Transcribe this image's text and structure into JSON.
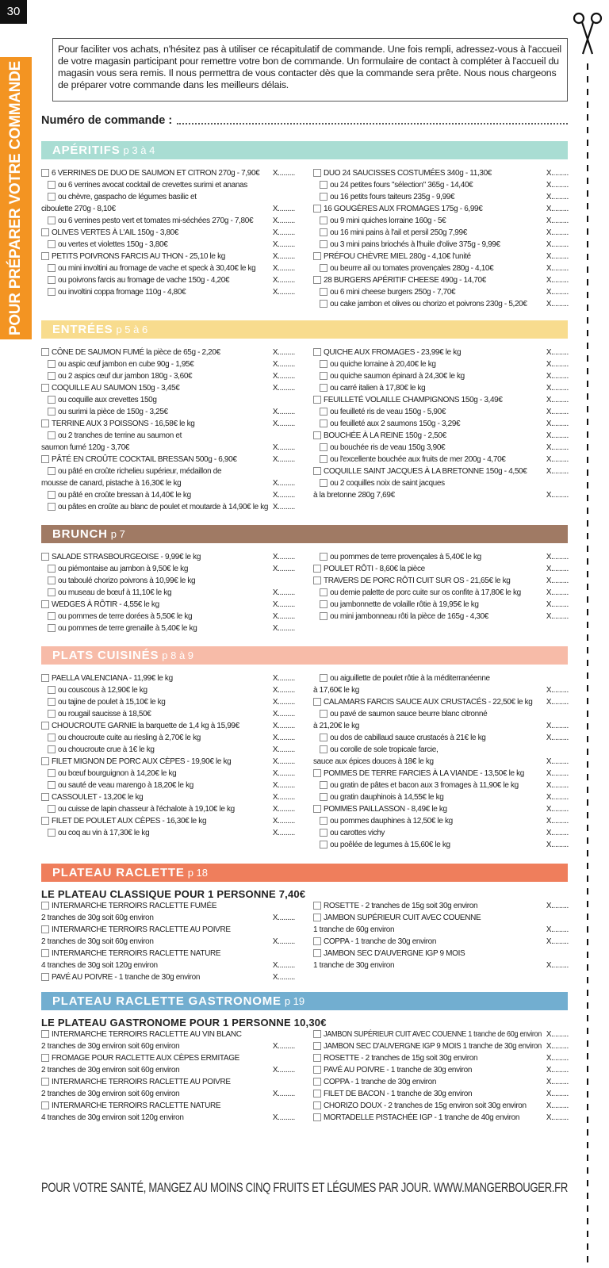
{
  "page_number": "30",
  "side_label": "POUR PRÉPARER VOTRE COMMANDE",
  "intro": "Pour faciliter vos achats, n'hésitez pas à utiliser ce récapitulatif de commande. Une fois rempli, adressez-vous à l'accueil de votre magasin participant pour remettre votre bon de commande. Un formulaire de contact à compléter à l'accueil du magasin vous sera remis. Il nous permettra de vous contacter dès que la commande sera prête. Nous nous chargeons de préparer votre commande dans les meilleurs délais.",
  "order_number_label": "Numéro de commande :",
  "order_mark": "X.........",
  "sections": [
    {
      "title": "APÉRITIFS",
      "pages": "p 3 à 4",
      "color": "#a9ddd3",
      "columns": [
        [
          {
            "kind": "item",
            "text": "6 VERRINES DE DUO DE SAUMON ET CITRON 270g - 7,90€",
            "x": true
          },
          {
            "kind": "option",
            "text": "ou 6 verrines avocat cocktail de crevettes surimi et ananas",
            "x": false
          },
          {
            "kind": "option",
            "text": "ou chèvre, gaspacho de légumes basilic et",
            "x": false
          },
          {
            "kind": "text",
            "text": "ciboulette 270g - 8,10€",
            "x": true
          },
          {
            "kind": "option",
            "text": "ou 6 verrines pesto vert et tomates mi-séchées 270g - 7,80€",
            "x": true
          },
          {
            "kind": "item",
            "text": "OLIVES VERTES À L'AIL 150g - 3,80€",
            "x": true
          },
          {
            "kind": "option",
            "text": "ou vertes et violettes 150g - 3,80€",
            "x": true
          },
          {
            "kind": "item",
            "text": "PETITS POIVRONS FARCIS AU THON - 25,10 le kg",
            "x": true
          },
          {
            "kind": "option",
            "text": "ou mini involtini au fromage de vache et speck à 30,40€ le kg",
            "x": true
          },
          {
            "kind": "option",
            "text": "ou poivrons farcis au fromage de vache 150g - 4,20€",
            "x": true
          },
          {
            "kind": "option",
            "text": "ou involtini coppa fromage 110g - 4,80€",
            "x": true
          }
        ],
        [
          {
            "kind": "item",
            "text": "DUO 24 SAUCISSES COSTUMÉES 340g - 11,30€",
            "x": true
          },
          {
            "kind": "option",
            "text": "ou 24 petites fours \"sélection\" 365g - 14,40€",
            "x": true
          },
          {
            "kind": "option",
            "text": "ou 16 petits fours taiteurs 235g - 9,99€",
            "x": true
          },
          {
            "kind": "item",
            "text": "16 GOUGÈRES AUX FROMAGES 175g - 6,99€",
            "x": true
          },
          {
            "kind": "option",
            "text": "ou 9 mini quiches lorraine 160g - 5€",
            "x": true
          },
          {
            "kind": "option",
            "text": "ou 16 mini pains à l'ail et persil 250g 7,99€",
            "x": true
          },
          {
            "kind": "option",
            "text": "ou 3 mini pains briochés à l'huile d'olive 375g - 9,99€",
            "x": true
          },
          {
            "kind": "item",
            "text": "PRÉFOU CHÈVRE MIEL 280g - 4,10€ l'unité",
            "x": true
          },
          {
            "kind": "option",
            "text": "ou beurre ail ou tomates provençales 280g - 4,10€",
            "x": true
          },
          {
            "kind": "item",
            "text": "28 BURGERS APÉRITIF CHEESE 490g - 14,70€",
            "x": true
          },
          {
            "kind": "option",
            "text": "ou 6 mini cheese burgers 250g - 7,70€",
            "x": true
          },
          {
            "kind": "option",
            "text": "ou cake jambon et olives ou chorizo et poivrons 230g - 5,20€",
            "x": true
          }
        ]
      ]
    },
    {
      "title": "ENTRÉES",
      "pages": "p 5 à 6",
      "color": "#f8dc8e",
      "columns": [
        [
          {
            "kind": "item",
            "text": "CÔNE DE SAUMON FUMÉ  la pièce de 65g - 2,20€",
            "x": true
          },
          {
            "kind": "option",
            "text": "ou aspic œuf jambon en cube 90g - 1,95€",
            "x": true
          },
          {
            "kind": "option",
            "text": "ou 2 aspics œuf dur jambon 180g - 3,60€",
            "x": true
          },
          {
            "kind": "item",
            "text": "COQUILLE AU SAUMON 150g - 3,45€",
            "x": true
          },
          {
            "kind": "option",
            "text": "ou coquille aux crevettes 150g",
            "x": false
          },
          {
            "kind": "option",
            "text": "ou surimi la pièce de 150g - 3,25€",
            "x": true
          },
          {
            "kind": "item",
            "text": "TERRINE AUX 3 POISSONS - 16,58€ le kg",
            "x": true
          },
          {
            "kind": "option",
            "text": "ou 2 tranches de terrine au saumon et",
            "x": false
          },
          {
            "kind": "text",
            "text": "saumon fumé 120g - 3,70€",
            "x": true
          },
          {
            "kind": "item",
            "text": "PÂTÉ EN CROÛTE COCKTAIL BRESSAN 500g - 6,90€",
            "x": true
          },
          {
            "kind": "option",
            "text": "ou pâté en croûte richelieu supérieur, médaillon de",
            "x": false
          },
          {
            "kind": "text",
            "text": "mousse de canard, pistache à 16,30€ le kg",
            "x": true
          },
          {
            "kind": "option",
            "text": "ou pâté en croûte bressan à 14,40€ le kg",
            "x": true
          },
          {
            "kind": "option",
            "text": "ou pâtes en croûte au blanc de poulet et moutarde à 14,90€ le kg",
            "x": true
          }
        ],
        [
          {
            "kind": "item",
            "text": "QUICHE AUX FROMAGES - 23,99€ le kg",
            "x": true
          },
          {
            "kind": "option",
            "text": "ou quiche lorraine à 20,40€ le kg",
            "x": true
          },
          {
            "kind": "option",
            "text": "ou quiche saumon épinard à 24,30€ le kg",
            "x": true
          },
          {
            "kind": "option",
            "text": "ou carré italien à 17,80€ le kg",
            "x": true
          },
          {
            "kind": "item",
            "text": "FEUILLETÉ VOLAILLE CHAMPIGNONS 150g - 3,49€",
            "x": true
          },
          {
            "kind": "option",
            "text": "ou feuilleté ris de veau 150g - 5,90€",
            "x": true
          },
          {
            "kind": "option",
            "text": "ou feuilleté aux 2 saumons 150g - 3,29€",
            "x": true
          },
          {
            "kind": "item",
            "text": "BOUCHÉE À LA REINE 150g - 2,50€",
            "x": true
          },
          {
            "kind": "option",
            "text": "ou bouchée ris de veau 150g 3,90€",
            "x": true
          },
          {
            "kind": "option",
            "text": "ou l'excellente bouchée aux fruits de mer 200g  - 4,70€",
            "x": true
          },
          {
            "kind": "item",
            "text": "COQUILLE SAINT JACQUES À LA BRETONNE 150g - 4,50€",
            "x": true
          },
          {
            "kind": "option",
            "text": "ou 2 coquilles noix de saint jacques",
            "x": false
          },
          {
            "kind": "text",
            "text": "à la bretonne 280g 7,69€",
            "x": true
          }
        ]
      ]
    },
    {
      "title": "BRUNCH",
      "pages": "p 7",
      "color": "#a07a64",
      "columns": [
        [
          {
            "kind": "item",
            "text": "SALADE STRASBOURGEOISE - 9,99€ le kg",
            "x": true
          },
          {
            "kind": "option",
            "text": "ou piémontaise au jambon à 9,50€ le kg",
            "x": true
          },
          {
            "kind": "option",
            "text": "ou taboulé chorizo poivrons à 10,99€ le kg",
            "x": false
          },
          {
            "kind": "option",
            "text": "ou museau de bœuf à 11,10€ le kg",
            "x": true
          },
          {
            "kind": "item",
            "text": "WEDGES À RÔTIR - 4,55€ le kg",
            "x": true
          },
          {
            "kind": "option",
            "text": "ou pommes de terre dorées à 5,50€ le kg",
            "x": true
          },
          {
            "kind": "option",
            "text": "ou pommes de terre grenaille à 5,40€ le kg",
            "x": true
          }
        ],
        [
          {
            "kind": "option",
            "text": "ou pommes de terre provençales à 5,40€ le kg",
            "x": true
          },
          {
            "kind": "item",
            "text": "POULET RÔTI - 8,60€ la pièce",
            "x": true
          },
          {
            "kind": "item",
            "text": "TRAVERS DE PORC RÔTI CUIT SUR OS - 21,65€ le kg",
            "x": true
          },
          {
            "kind": "option",
            "text": "ou demie palette de porc cuite sur os confite à 17,80€ le kg",
            "x": true
          },
          {
            "kind": "option",
            "text": "ou jambonnette de volaille rôtie à 19,95€ le kg",
            "x": true
          },
          {
            "kind": "option",
            "text": "ou mini jambonneau rôti la pièce de 165g - 4,30€",
            "x": true
          }
        ]
      ]
    },
    {
      "title": "PLATS CUISINÉS",
      "pages": "p 8 à 9",
      "color": "#f7bba8",
      "columns": [
        [
          {
            "kind": "item",
            "text": "PAELLA VALENCIANA - 11,99€ le kg",
            "x": true
          },
          {
            "kind": "option",
            "text": "ou couscous à 12,90€ le kg",
            "x": true
          },
          {
            "kind": "option",
            "text": "ou tajine de poulet à 15,10€ le kg",
            "x": true
          },
          {
            "kind": "option",
            "text": "ou rougail saucisse à 18,50€",
            "x": true
          },
          {
            "kind": "item",
            "text": "CHOUCROUTE GARNIE la barquette de 1,4 kg à 15,99€",
            "x": true
          },
          {
            "kind": "option",
            "text": "ou choucroute cuite au riesling à 2,70€ le kg",
            "x": true
          },
          {
            "kind": "option",
            "text": "ou choucroute crue à 1€ le kg",
            "x": true
          },
          {
            "kind": "item",
            "text": "FILET MIGNON DE PORC AUX CÈPES - 19,90€ le kg",
            "x": true
          },
          {
            "kind": "option",
            "text": "ou bœuf bourguignon à 14,20€ le kg",
            "x": true
          },
          {
            "kind": "option",
            "text": "ou sauté de veau marengo à 18,20€ le kg",
            "x": true
          },
          {
            "kind": "item",
            "text": "CASSOULET - 13,20€ le kg",
            "x": true
          },
          {
            "kind": "option",
            "text": "ou cuisse de lapin chasseur à l'échalote à 19,10€ le kg",
            "x": true
          },
          {
            "kind": "item",
            "text": "FILET DE POULET AUX CÈPES - 16,30€ le kg",
            "x": true
          },
          {
            "kind": "option",
            "text": "ou coq au vin à 17,30€ le kg",
            "x": true
          }
        ],
        [
          {
            "kind": "option",
            "text": "ou aiguillette de poulet rôtie à la méditerranéenne",
            "x": false
          },
          {
            "kind": "text",
            "text": "à 17,60€ le kg",
            "x": true
          },
          {
            "kind": "item",
            "text": "CALAMARS FARCIS SAUCE AUX CRUSTACÉS - 22,50€ le kg",
            "x": true
          },
          {
            "kind": "option",
            "text": "ou pavé de saumon sauce beurre blanc citronné",
            "x": false
          },
          {
            "kind": "text",
            "text": "à 21,20€ le kg",
            "x": true
          },
          {
            "kind": "option",
            "text": "ou dos de cabillaud sauce crustacés à 21€ le kg",
            "x": true
          },
          {
            "kind": "option",
            "text": "ou corolle de sole tropicale farcie,",
            "x": false
          },
          {
            "kind": "text",
            "text": "sauce aux épices douces à 18€ le kg",
            "x": true
          },
          {
            "kind": "item",
            "text": "POMMES DE TERRE FARCIES À LA VIANDE - 13,50€ le kg",
            "x": true
          },
          {
            "kind": "option",
            "text": "ou gratin de pâtes et bacon aux 3 fromages à 11,90€ le kg",
            "x": true
          },
          {
            "kind": "option",
            "text": "ou gratin dauphinois à 14,55€ le kg",
            "x": true
          },
          {
            "kind": "item",
            "text": "POMMES PAILLASSON - 8,49€ le kg",
            "x": true
          },
          {
            "kind": "option",
            "text": "ou pommes dauphines à 12,50€ le kg",
            "x": true
          },
          {
            "kind": "option",
            "text": "ou carottes vichy",
            "x": true
          },
          {
            "kind": "option",
            "text": "ou poêlée de legumes à 15,60€ le kg",
            "x": true
          }
        ]
      ]
    },
    {
      "title": "PLATEAU RACLETTE",
      "pages": "p 18",
      "color": "#ef7e5c",
      "subtitle": "LE PLATEAU CLASSIQUE POUR 1 PERSONNE 7,40€",
      "columns": [
        [
          {
            "kind": "item",
            "text": "INTERMARCHE TERROIRS RACLETTE FUMÉE",
            "x": false
          },
          {
            "kind": "text",
            "text": "2 tranches de 30g soit 60g environ",
            "x": true
          },
          {
            "kind": "item",
            "text": "INTERMARCHE TERROIRS RACLETTE AU POIVRE",
            "x": false
          },
          {
            "kind": "text",
            "text": "2 tranches de 30g soit 60g environ",
            "x": true
          },
          {
            "kind": "item",
            "text": "INTERMARCHE TERROIRS RACLETTE NATURE",
            "x": false
          },
          {
            "kind": "text",
            "text": "4 tranches de 30g soit 120g environ",
            "x": true
          },
          {
            "kind": "item",
            "text": "PAVÉ AU POIVRE - 1 tranche de 30g environ",
            "x": true
          }
        ],
        [
          {
            "kind": "item",
            "text": "ROSETTE - 2 tranches de 15g soit 30g environ",
            "x": true
          },
          {
            "kind": "item",
            "text": "JAMBON SUPÉRIEUR CUIT AVEC COUENNE",
            "x": false
          },
          {
            "kind": "text",
            "text": "1 tranche de 60g environ",
            "x": true
          },
          {
            "kind": "item",
            "text": "COPPA - 1 tranche de 30g environ",
            "x": true
          },
          {
            "kind": "item",
            "text": "JAMBON SEC D'AUVERGNE IGP 9 MOIS",
            "x": false
          },
          {
            "kind": "text",
            "text": "1 tranche de 30g environ",
            "x": true
          }
        ]
      ]
    },
    {
      "title": "PLATEAU RACLETTE GASTRONOME",
      "pages": "p 19",
      "color": "#72aed0",
      "subtitle": "LE PLATEAU GASTRONOME POUR 1 PERSONNE 10,30€",
      "columns": [
        [
          {
            "kind": "item",
            "text": "INTERMARCHE TERROIRS RACLETTE AU VIN BLANC",
            "x": false
          },
          {
            "kind": "text",
            "text": "2 tranches de 30g environ soit 60g environ",
            "x": true
          },
          {
            "kind": "item",
            "text": "FROMAGE POUR RACLETTE AUX CÈPES ERMITAGE",
            "x": false
          },
          {
            "kind": "text",
            "text": "2 tranches de 30g environ soit 60g environ",
            "x": true
          },
          {
            "kind": "item",
            "text": "INTERMARCHE TERROIRS RACLETTE AU POIVRE",
            "x": false
          },
          {
            "kind": "text",
            "text": "2 tranches de 30g environ soit 60g environ",
            "x": true
          },
          {
            "kind": "item",
            "text": "INTERMARCHE TERROIRS RACLETTE NATURE",
            "x": false
          },
          {
            "kind": "text",
            "text": "4 tranches de 30g environ soit 120g environ",
            "x": true
          }
        ],
        [
          {
            "kind": "item",
            "text": "JAMBON SUPÉRIEUR CUIT AVEC COUENNE 1 tranche de 60g environ",
            "x": true
          },
          {
            "kind": "item",
            "text": "JAMBON SEC D'AUVERGNE IGP 9 MOIS 1 tranche de 30g environ",
            "x": true
          },
          {
            "kind": "item",
            "text": "ROSETTE - 2 tranches de 15g soit 30g environ",
            "x": true
          },
          {
            "kind": "item",
            "text": "PAVÉ AU POIVRE - 1 tranche de 30g environ",
            "x": true
          },
          {
            "kind": "item",
            "text": "COPPA - 1 tranche de 30g environ",
            "x": true
          },
          {
            "kind": "item",
            "text": "FILET DE BACON - 1 tranche de 30g environ",
            "x": true
          },
          {
            "kind": "item",
            "text": "CHORIZO DOUX - 2 tranches de 15g environ soit 30g environ",
            "x": true
          },
          {
            "kind": "item",
            "text": "MORTADELLE PISTACHÉE IGP - 1 tranche de 40g environ",
            "x": true
          }
        ]
      ]
    }
  ],
  "footer": "POUR VOTRE SANTÉ, MANGEZ AU MOINS CINQ FRUITS ET LÉGUMES PAR JOUR. WWW.MANGERBOUGER.FR"
}
